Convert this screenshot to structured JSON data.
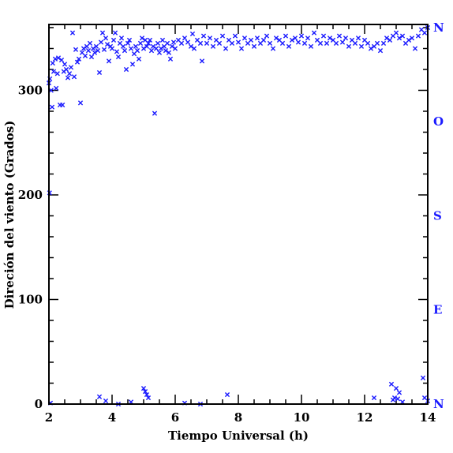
{
  "chart_data": {
    "type": "scatter",
    "title": "",
    "xlabel": "Tiempo Universal (h)",
    "ylabel": "Direción del viento (Grados)",
    "xlim": [
      2,
      14
    ],
    "ylim": [
      0,
      363
    ],
    "x_ticks": [
      2,
      4,
      6,
      8,
      10,
      12,
      14
    ],
    "y_ticks": [
      0,
      100,
      200,
      300
    ],
    "x_minor_step": 0.5,
    "y_minor_step": 20,
    "grid": false,
    "marker": "x",
    "marker_color": "#1a1aff",
    "right_axis_labels": [
      {
        "label": "N",
        "value": 0
      },
      {
        "label": "E",
        "value": 90
      },
      {
        "label": "S",
        "value": 180
      },
      {
        "label": "O",
        "value": 270
      },
      {
        "label": "N",
        "value": 360
      }
    ],
    "points": [
      [
        2.0,
        307
      ],
      [
        2.03,
        311
      ],
      [
        2.07,
        300
      ],
      [
        2.1,
        284
      ],
      [
        2.12,
        326
      ],
      [
        2.15,
        318
      ],
      [
        2.2,
        330
      ],
      [
        2.23,
        302
      ],
      [
        2.27,
        316
      ],
      [
        2.3,
        331
      ],
      [
        2.35,
        286
      ],
      [
        2.4,
        329
      ],
      [
        2.43,
        286
      ],
      [
        2.47,
        318
      ],
      [
        2.5,
        325
      ],
      [
        2.55,
        320
      ],
      [
        2.6,
        312
      ],
      [
        2.65,
        316
      ],
      [
        2.7,
        322
      ],
      [
        2.75,
        355
      ],
      [
        2.8,
        313
      ],
      [
        2.85,
        339
      ],
      [
        2.9,
        327
      ],
      [
        2.95,
        330
      ],
      [
        3.0,
        288
      ],
      [
        3.05,
        336
      ],
      [
        3.1,
        340
      ],
      [
        3.15,
        333
      ],
      [
        3.2,
        342
      ],
      [
        3.25,
        338
      ],
      [
        3.3,
        345
      ],
      [
        3.35,
        332
      ],
      [
        3.4,
        340
      ],
      [
        3.45,
        336
      ],
      [
        3.5,
        342
      ],
      [
        3.55,
        338
      ],
      [
        3.6,
        317
      ],
      [
        3.65,
        346
      ],
      [
        3.7,
        355
      ],
      [
        3.75,
        339
      ],
      [
        3.8,
        350
      ],
      [
        3.85,
        344
      ],
      [
        3.9,
        328
      ],
      [
        3.95,
        342
      ],
      [
        4.0,
        340
      ],
      [
        4.05,
        348
      ],
      [
        4.1,
        355
      ],
      [
        4.15,
        337
      ],
      [
        4.2,
        332
      ],
      [
        4.25,
        345
      ],
      [
        4.3,
        350
      ],
      [
        4.35,
        342
      ],
      [
        4.4,
        338
      ],
      [
        4.45,
        320
      ],
      [
        4.5,
        345
      ],
      [
        4.55,
        348
      ],
      [
        4.6,
        340
      ],
      [
        4.65,
        325
      ],
      [
        4.7,
        335
      ],
      [
        4.75,
        342
      ],
      [
        4.8,
        338
      ],
      [
        4.85,
        330
      ],
      [
        4.9,
        345
      ],
      [
        4.95,
        350
      ],
      [
        5.0,
        340
      ],
      [
        5.05,
        348
      ],
      [
        5.1,
        342
      ],
      [
        5.15,
        345
      ],
      [
        5.2,
        348
      ],
      [
        5.25,
        338
      ],
      [
        5.3,
        342
      ],
      [
        5.35,
        278
      ],
      [
        5.4,
        340
      ],
      [
        5.45,
        345
      ],
      [
        5.5,
        336
      ],
      [
        5.55,
        340
      ],
      [
        5.6,
        348
      ],
      [
        5.65,
        342
      ],
      [
        5.7,
        338
      ],
      [
        5.75,
        345
      ],
      [
        5.8,
        336
      ],
      [
        5.85,
        330
      ],
      [
        5.9,
        342
      ],
      [
        5.95,
        346
      ],
      [
        6.0,
        340
      ],
      [
        6.1,
        348
      ],
      [
        6.2,
        345
      ],
      [
        6.3,
        350
      ],
      [
        6.4,
        346
      ],
      [
        6.5,
        342
      ],
      [
        6.55,
        354
      ],
      [
        6.6,
        340
      ],
      [
        6.7,
        348
      ],
      [
        6.8,
        345
      ],
      [
        6.85,
        328
      ],
      [
        6.9,
        352
      ],
      [
        7.0,
        345
      ],
      [
        7.1,
        350
      ],
      [
        7.2,
        342
      ],
      [
        7.3,
        348
      ],
      [
        7.4,
        345
      ],
      [
        7.5,
        352
      ],
      [
        7.6,
        340
      ],
      [
        7.7,
        348
      ],
      [
        7.8,
        345
      ],
      [
        7.9,
        352
      ],
      [
        8.0,
        346
      ],
      [
        8.1,
        340
      ],
      [
        8.2,
        350
      ],
      [
        8.3,
        345
      ],
      [
        8.4,
        348
      ],
      [
        8.5,
        342
      ],
      [
        8.6,
        350
      ],
      [
        8.7,
        345
      ],
      [
        8.8,
        348
      ],
      [
        8.9,
        352
      ],
      [
        9.0,
        345
      ],
      [
        9.1,
        340
      ],
      [
        9.2,
        350
      ],
      [
        9.3,
        348
      ],
      [
        9.4,
        345
      ],
      [
        9.5,
        352
      ],
      [
        9.6,
        342
      ],
      [
        9.7,
        348
      ],
      [
        9.8,
        350
      ],
      [
        9.9,
        346
      ],
      [
        10.0,
        352
      ],
      [
        10.1,
        345
      ],
      [
        10.2,
        350
      ],
      [
        10.3,
        342
      ],
      [
        10.4,
        355
      ],
      [
        10.5,
        348
      ],
      [
        10.6,
        345
      ],
      [
        10.7,
        352
      ],
      [
        10.8,
        345
      ],
      [
        10.9,
        350
      ],
      [
        11.0,
        348
      ],
      [
        11.1,
        345
      ],
      [
        11.2,
        352
      ],
      [
        11.3,
        346
      ],
      [
        11.4,
        350
      ],
      [
        11.5,
        342
      ],
      [
        11.6,
        348
      ],
      [
        11.7,
        345
      ],
      [
        11.8,
        350
      ],
      [
        11.9,
        342
      ],
      [
        12.0,
        348
      ],
      [
        12.1,
        345
      ],
      [
        12.2,
        340
      ],
      [
        12.3,
        342
      ],
      [
        12.4,
        345
      ],
      [
        12.5,
        338
      ],
      [
        12.6,
        345
      ],
      [
        12.7,
        350
      ],
      [
        12.8,
        348
      ],
      [
        12.9,
        352
      ],
      [
        13.0,
        355
      ],
      [
        13.1,
        350
      ],
      [
        13.2,
        352
      ],
      [
        13.3,
        345
      ],
      [
        13.4,
        348
      ],
      [
        13.5,
        350
      ],
      [
        13.6,
        340
      ],
      [
        13.7,
        352
      ],
      [
        13.8,
        358
      ],
      [
        13.9,
        355
      ],
      [
        14.0,
        360
      ],
      [
        2.02,
        202
      ],
      [
        2.05,
        1
      ],
      [
        3.6,
        7
      ],
      [
        3.8,
        3
      ],
      [
        4.2,
        0
      ],
      [
        4.6,
        2
      ],
      [
        5.0,
        15
      ],
      [
        5.05,
        12
      ],
      [
        5.1,
        9
      ],
      [
        5.15,
        6
      ],
      [
        6.3,
        1
      ],
      [
        6.8,
        0
      ],
      [
        7.65,
        9
      ],
      [
        12.3,
        6
      ],
      [
        12.85,
        19
      ],
      [
        12.9,
        4
      ],
      [
        12.95,
        6
      ],
      [
        13.0,
        15
      ],
      [
        13.05,
        5
      ],
      [
        13.1,
        11
      ],
      [
        13.2,
        2
      ],
      [
        13.85,
        25
      ],
      [
        13.9,
        6
      ],
      [
        14.0,
        3
      ]
    ]
  }
}
